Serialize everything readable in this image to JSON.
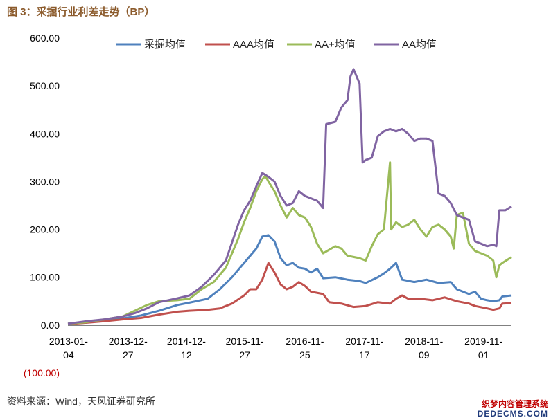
{
  "header": {
    "title": "图 3：采掘行业利差走势（BP）"
  },
  "footer": {
    "source": "资料来源：Wind，天风证券研究所",
    "watermark_line1": "织梦内容管理系统",
    "watermark_line2": "DEDECMS.COM"
  },
  "chart_data": {
    "type": "line",
    "title": "采掘行业利差走势（BP）",
    "ylim": [
      -100,
      600
    ],
    "yticks": [
      "600.00",
      "500.00",
      "400.00",
      "300.00",
      "200.00",
      "100.00",
      "0.00",
      "(100.00)"
    ],
    "ytick_values": [
      600,
      500,
      400,
      300,
      200,
      100,
      0,
      -100
    ],
    "xlim": [
      2013.0,
      2020.3
    ],
    "xticks": [
      {
        "top": "2013-01-",
        "bottom": "04",
        "t": 2013.01
      },
      {
        "top": "2013-12-",
        "bottom": "27",
        "t": 2013.99
      },
      {
        "top": "2014-12-",
        "bottom": "12",
        "t": 2014.95
      },
      {
        "top": "2015-11-",
        "bottom": "27",
        "t": 2015.91
      },
      {
        "top": "2016-11-",
        "bottom": "25",
        "t": 2016.9
      },
      {
        "top": "2017-11-",
        "bottom": "17",
        "t": 2017.88
      },
      {
        "top": "2018-11-",
        "bottom": "09",
        "t": 2018.86
      },
      {
        "top": "2019-11-",
        "bottom": "01",
        "t": 2019.84
      }
    ],
    "series": [
      {
        "name": "采掘均值",
        "color": "#4f81bd",
        "points": [
          [
            2013.0,
            3
          ],
          [
            2013.3,
            5
          ],
          [
            2013.6,
            10
          ],
          [
            2013.9,
            14
          ],
          [
            2014.2,
            20
          ],
          [
            2014.5,
            30
          ],
          [
            2014.8,
            42
          ],
          [
            2015.0,
            47
          ],
          [
            2015.3,
            55
          ],
          [
            2015.5,
            75
          ],
          [
            2015.7,
            100
          ],
          [
            2015.9,
            130
          ],
          [
            2016.0,
            145
          ],
          [
            2016.1,
            160
          ],
          [
            2016.2,
            185
          ],
          [
            2016.3,
            188
          ],
          [
            2016.4,
            175
          ],
          [
            2016.5,
            140
          ],
          [
            2016.6,
            125
          ],
          [
            2016.7,
            130
          ],
          [
            2016.8,
            120
          ],
          [
            2016.9,
            118
          ],
          [
            2017.0,
            110
          ],
          [
            2017.1,
            118
          ],
          [
            2017.2,
            98
          ],
          [
            2017.4,
            100
          ],
          [
            2017.6,
            95
          ],
          [
            2017.8,
            92
          ],
          [
            2017.9,
            88
          ],
          [
            2018.1,
            100
          ],
          [
            2018.2,
            108
          ],
          [
            2018.3,
            118
          ],
          [
            2018.4,
            130
          ],
          [
            2018.5,
            95
          ],
          [
            2018.7,
            90
          ],
          [
            2018.9,
            95
          ],
          [
            2019.1,
            88
          ],
          [
            2019.3,
            90
          ],
          [
            2019.4,
            75
          ],
          [
            2019.6,
            65
          ],
          [
            2019.7,
            70
          ],
          [
            2019.8,
            55
          ],
          [
            2019.9,
            52
          ],
          [
            2020.0,
            50
          ],
          [
            2020.1,
            52
          ],
          [
            2020.15,
            60
          ],
          [
            2020.3,
            62
          ]
        ]
      },
      {
        "name": "AAA均值",
        "color": "#c0504d",
        "points": [
          [
            2013.0,
            2
          ],
          [
            2013.3,
            5
          ],
          [
            2013.6,
            8
          ],
          [
            2013.9,
            12
          ],
          [
            2014.2,
            15
          ],
          [
            2014.5,
            22
          ],
          [
            2014.8,
            28
          ],
          [
            2015.0,
            30
          ],
          [
            2015.3,
            32
          ],
          [
            2015.5,
            35
          ],
          [
            2015.7,
            45
          ],
          [
            2015.9,
            62
          ],
          [
            2016.0,
            75
          ],
          [
            2016.1,
            75
          ],
          [
            2016.2,
            95
          ],
          [
            2016.3,
            130
          ],
          [
            2016.4,
            110
          ],
          [
            2016.5,
            85
          ],
          [
            2016.6,
            75
          ],
          [
            2016.7,
            80
          ],
          [
            2016.8,
            90
          ],
          [
            2016.9,
            82
          ],
          [
            2017.0,
            70
          ],
          [
            2017.2,
            65
          ],
          [
            2017.3,
            48
          ],
          [
            2017.5,
            45
          ],
          [
            2017.7,
            38
          ],
          [
            2017.9,
            40
          ],
          [
            2018.1,
            48
          ],
          [
            2018.3,
            45
          ],
          [
            2018.4,
            55
          ],
          [
            2018.5,
            62
          ],
          [
            2018.6,
            55
          ],
          [
            2018.8,
            55
          ],
          [
            2019.0,
            52
          ],
          [
            2019.2,
            58
          ],
          [
            2019.4,
            50
          ],
          [
            2019.6,
            45
          ],
          [
            2019.7,
            40
          ],
          [
            2019.9,
            35
          ],
          [
            2020.0,
            32
          ],
          [
            2020.1,
            35
          ],
          [
            2020.15,
            45
          ],
          [
            2020.3,
            46
          ]
        ]
      },
      {
        "name": "AA+均值",
        "color": "#9bbb59",
        "points": [
          [
            2013.0,
            3
          ],
          [
            2013.3,
            6
          ],
          [
            2013.6,
            12
          ],
          [
            2013.9,
            18
          ],
          [
            2014.1,
            30
          ],
          [
            2014.3,
            42
          ],
          [
            2014.5,
            50
          ],
          [
            2014.8,
            52
          ],
          [
            2015.0,
            55
          ],
          [
            2015.2,
            75
          ],
          [
            2015.4,
            90
          ],
          [
            2015.6,
            120
          ],
          [
            2015.8,
            180
          ],
          [
            2015.9,
            215
          ],
          [
            2016.0,
            245
          ],
          [
            2016.1,
            280
          ],
          [
            2016.2,
            305
          ],
          [
            2016.25,
            312
          ],
          [
            2016.3,
            300
          ],
          [
            2016.4,
            280
          ],
          [
            2016.5,
            250
          ],
          [
            2016.6,
            225
          ],
          [
            2016.7,
            245
          ],
          [
            2016.8,
            230
          ],
          [
            2016.9,
            225
          ],
          [
            2017.0,
            205
          ],
          [
            2017.1,
            170
          ],
          [
            2017.2,
            150
          ],
          [
            2017.4,
            165
          ],
          [
            2017.5,
            160
          ],
          [
            2017.6,
            145
          ],
          [
            2017.8,
            140
          ],
          [
            2017.9,
            135
          ],
          [
            2018.0,
            165
          ],
          [
            2018.1,
            190
          ],
          [
            2018.2,
            200
          ],
          [
            2018.3,
            340
          ],
          [
            2018.32,
            200
          ],
          [
            2018.4,
            215
          ],
          [
            2018.5,
            205
          ],
          [
            2018.6,
            210
          ],
          [
            2018.7,
            220
          ],
          [
            2018.8,
            200
          ],
          [
            2018.9,
            185
          ],
          [
            2019.0,
            205
          ],
          [
            2019.1,
            210
          ],
          [
            2019.2,
            200
          ],
          [
            2019.3,
            185
          ],
          [
            2019.35,
            160
          ],
          [
            2019.4,
            230
          ],
          [
            2019.5,
            235
          ],
          [
            2019.6,
            170
          ],
          [
            2019.7,
            155
          ],
          [
            2019.8,
            150
          ],
          [
            2019.9,
            145
          ],
          [
            2020.0,
            135
          ],
          [
            2020.05,
            100
          ],
          [
            2020.1,
            125
          ],
          [
            2020.15,
            130
          ],
          [
            2020.3,
            142
          ]
        ]
      },
      {
        "name": "AA均值",
        "color": "#8064a2",
        "points": [
          [
            2013.0,
            3
          ],
          [
            2013.3,
            8
          ],
          [
            2013.6,
            12
          ],
          [
            2013.9,
            18
          ],
          [
            2014.1,
            25
          ],
          [
            2014.3,
            35
          ],
          [
            2014.5,
            48
          ],
          [
            2014.8,
            56
          ],
          [
            2015.0,
            62
          ],
          [
            2015.2,
            80
          ],
          [
            2015.4,
            105
          ],
          [
            2015.6,
            135
          ],
          [
            2015.8,
            210
          ],
          [
            2015.9,
            240
          ],
          [
            2016.0,
            260
          ],
          [
            2016.1,
            290
          ],
          [
            2016.2,
            318
          ],
          [
            2016.3,
            310
          ],
          [
            2016.4,
            300
          ],
          [
            2016.5,
            270
          ],
          [
            2016.6,
            250
          ],
          [
            2016.7,
            255
          ],
          [
            2016.8,
            280
          ],
          [
            2016.9,
            270
          ],
          [
            2017.0,
            265
          ],
          [
            2017.1,
            260
          ],
          [
            2017.2,
            245
          ],
          [
            2017.25,
            420
          ],
          [
            2017.4,
            425
          ],
          [
            2017.5,
            455
          ],
          [
            2017.6,
            470
          ],
          [
            2017.65,
            520
          ],
          [
            2017.7,
            535
          ],
          [
            2017.75,
            520
          ],
          [
            2017.8,
            505
          ],
          [
            2017.85,
            340
          ],
          [
            2017.9,
            345
          ],
          [
            2018.0,
            350
          ],
          [
            2018.1,
            395
          ],
          [
            2018.2,
            405
          ],
          [
            2018.3,
            410
          ],
          [
            2018.4,
            405
          ],
          [
            2018.5,
            410
          ],
          [
            2018.6,
            400
          ],
          [
            2018.7,
            385
          ],
          [
            2018.8,
            390
          ],
          [
            2018.9,
            390
          ],
          [
            2019.0,
            385
          ],
          [
            2019.1,
            275
          ],
          [
            2019.2,
            270
          ],
          [
            2019.3,
            255
          ],
          [
            2019.4,
            230
          ],
          [
            2019.5,
            225
          ],
          [
            2019.6,
            220
          ],
          [
            2019.7,
            175
          ],
          [
            2019.8,
            170
          ],
          [
            2019.9,
            165
          ],
          [
            2020.0,
            168
          ],
          [
            2020.05,
            165
          ],
          [
            2020.1,
            240
          ],
          [
            2020.2,
            240
          ],
          [
            2020.3,
            248
          ]
        ]
      }
    ]
  }
}
